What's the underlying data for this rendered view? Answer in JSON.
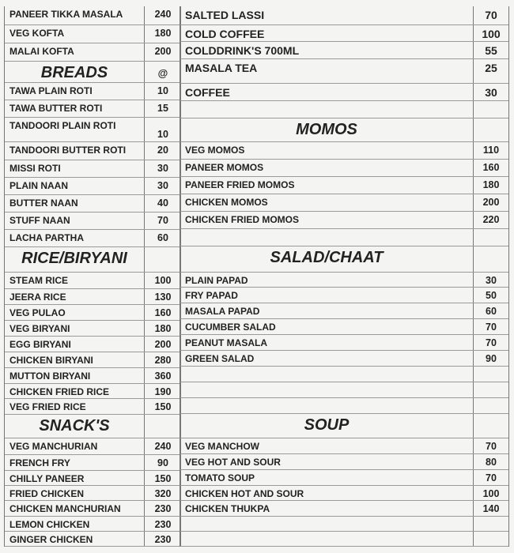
{
  "left_column": [
    {
      "type": "item",
      "name": "PANEER TIKKA MASALA",
      "price": "240"
    },
    {
      "type": "item",
      "name": "VEG KOFTA",
      "price": "180"
    },
    {
      "type": "item",
      "name": "MALAI KOFTA",
      "price": "200"
    },
    {
      "type": "heading",
      "name": "BREADS",
      "price": "@"
    },
    {
      "type": "item",
      "name": "TAWA PLAIN ROTI",
      "price": "10"
    },
    {
      "type": "item",
      "name": "TAWA BUTTER ROTI",
      "price": "15"
    },
    {
      "type": "item",
      "name": "TANDOORI PLAIN ROTI",
      "price": "10"
    },
    {
      "type": "item",
      "name": "TANDOORI BUTTER ROTI",
      "price": "20"
    },
    {
      "type": "item",
      "name": "MISSI ROTI",
      "price": "30"
    },
    {
      "type": "item",
      "name": "PLAIN NAAN",
      "price": "30"
    },
    {
      "type": "item",
      "name": "BUTTER NAAN",
      "price": "40"
    },
    {
      "type": "item",
      "name": "STUFF NAAN",
      "price": "70"
    },
    {
      "type": "item",
      "name": "LACHA PARTHA",
      "price": "60"
    },
    {
      "type": "heading",
      "name": "RICE/BIRYANI",
      "price": ""
    },
    {
      "type": "item",
      "name": "STEAM RICE",
      "price": "100"
    },
    {
      "type": "item",
      "name": "JEERA RICE",
      "price": "130"
    },
    {
      "type": "item",
      "name": "VEG PULAO",
      "price": "160"
    },
    {
      "type": "item",
      "name": "VEG BIRYANI",
      "price": "180"
    },
    {
      "type": "item",
      "name": "EGG BIRYANI",
      "price": "200"
    },
    {
      "type": "item",
      "name": "CHICKEN BIRYANI",
      "price": "280"
    },
    {
      "type": "item",
      "name": "MUTTON BIRYANI",
      "price": "360"
    },
    {
      "type": "item",
      "name": "CHICKEN FRIED RICE",
      "price": "190"
    },
    {
      "type": "item",
      "name": "VEG FRIED RICE",
      "price": "150"
    },
    {
      "type": "heading",
      "name": "SNACK'S",
      "price": ""
    },
    {
      "type": "item",
      "name": "VEG MANCHURIAN",
      "price": "240"
    },
    {
      "type": "item",
      "name": "FRENCH FRY",
      "price": "90"
    },
    {
      "type": "item",
      "name": "CHILLY PANEER",
      "price": "150"
    },
    {
      "type": "item",
      "name": "FRIED CHICKEN",
      "price": "320"
    },
    {
      "type": "item",
      "name": "CHICKEN MANCHURIAN",
      "price": "230"
    },
    {
      "type": "item",
      "name": "LEMON CHICKEN",
      "price": "230"
    },
    {
      "type": "item",
      "name": "GINGER  CHICKEN",
      "price": "230"
    }
  ],
  "right_column": [
    {
      "type": "item",
      "name": "SALTED LASSI",
      "price": "70"
    },
    {
      "type": "item",
      "name": "COLD COFFEE",
      "price": "100"
    },
    {
      "type": "item",
      "name": "COLDDRINK'S 700ML",
      "price": "55"
    },
    {
      "type": "item",
      "name": "MASALA TEA",
      "price": "25"
    },
    {
      "type": "item",
      "name": "COFFEE",
      "price": "30"
    },
    {
      "type": "blank",
      "name": "",
      "price": ""
    },
    {
      "type": "heading",
      "name": "MOMOS",
      "price": ""
    },
    {
      "type": "item",
      "name": "VEG MOMOS",
      "price": "110"
    },
    {
      "type": "item",
      "name": "PANEER MOMOS",
      "price": "160"
    },
    {
      "type": "item",
      "name": "PANEER FRIED MOMOS",
      "price": "180"
    },
    {
      "type": "item",
      "name": "CHICKEN MOMOS",
      "price": "200"
    },
    {
      "type": "item",
      "name": "CHICKEN FRIED MOMOS",
      "price": "220"
    },
    {
      "type": "blank",
      "name": "",
      "price": ""
    },
    {
      "type": "heading",
      "name": "SALAD/CHAAT",
      "price": ""
    },
    {
      "type": "item",
      "name": "PLAIN PAPAD",
      "price": "30"
    },
    {
      "type": "item",
      "name": "FRY PAPAD",
      "price": "50"
    },
    {
      "type": "item",
      "name": "MASALA PAPAD",
      "price": "60"
    },
    {
      "type": "item",
      "name": "CUCUMBER SALAD",
      "price": "70"
    },
    {
      "type": "item",
      "name": "PEANUT MASALA",
      "price": "70"
    },
    {
      "type": "item",
      "name": "GREEN SALAD",
      "price": "90"
    },
    {
      "type": "blank",
      "name": "",
      "price": ""
    },
    {
      "type": "blank",
      "name": "",
      "price": ""
    },
    {
      "type": "blank",
      "name": "",
      "price": ""
    },
    {
      "type": "heading",
      "name": "SOUP",
      "price": ""
    },
    {
      "type": "item",
      "name": "VEG MANCHOW",
      "price": "70"
    },
    {
      "type": "item",
      "name": "VEG HOT AND SOUR",
      "price": "80"
    },
    {
      "type": "item",
      "name": "TOMATO SOUP",
      "price": "70"
    },
    {
      "type": "item",
      "name": "CHICKEN HOT AND SOUR",
      "price": "100"
    },
    {
      "type": "item",
      "name": "CHICKEN THUKPA",
      "price": "140"
    },
    {
      "type": "blank",
      "name": "",
      "price": ""
    },
    {
      "type": "blank",
      "name": "",
      "price": ""
    }
  ]
}
